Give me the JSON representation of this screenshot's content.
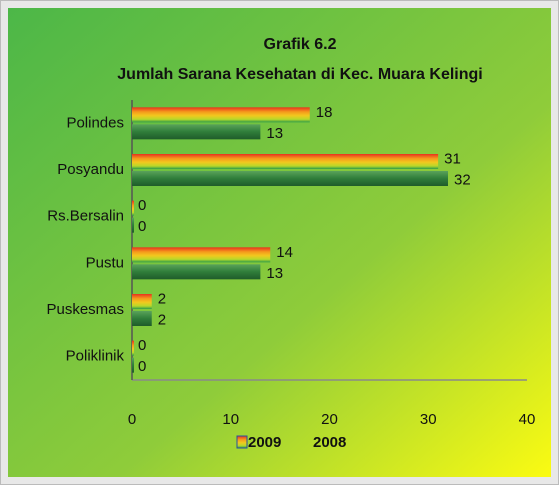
{
  "chart_data": {
    "type": "hbar",
    "title": "Grafik 6.2",
    "subtitle": "Jumlah Sarana Kesehatan di Kec. Muara Kelingi",
    "categories": [
      "Polindes",
      "Posyandu",
      "Rs.Bersalin",
      "Pustu",
      "Puskesmas",
      "Poliklinik"
    ],
    "series": [
      {
        "name": "2009",
        "color": "#f2c81e",
        "values": [
          18,
          31,
          0,
          14,
          2,
          0
        ]
      },
      {
        "name": "2008",
        "color": "#2f7d3a",
        "values": [
          13,
          32,
          0,
          13,
          2,
          0
        ]
      }
    ],
    "xlim": [
      0,
      40
    ],
    "xticks": [
      0,
      10,
      20,
      30,
      40
    ],
    "legend": "bottom"
  }
}
